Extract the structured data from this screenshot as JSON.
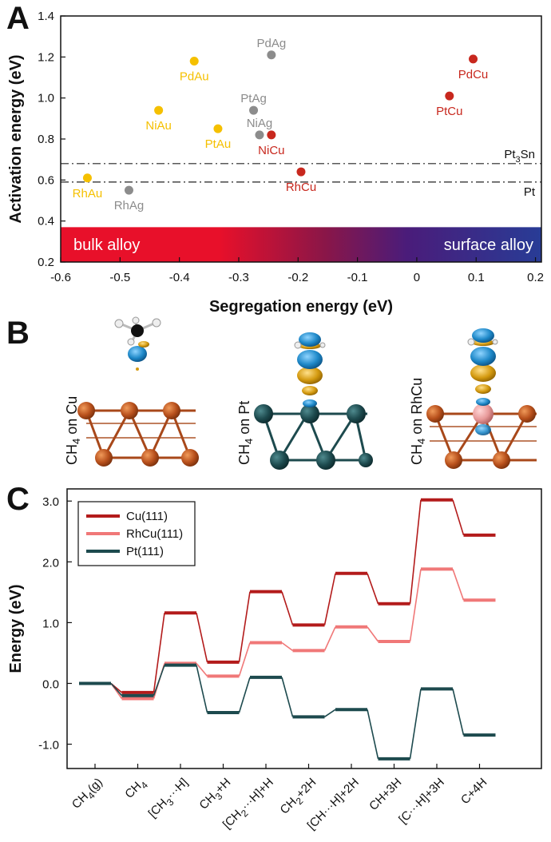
{
  "panels": {
    "a_letter": "A",
    "b_letter": "B",
    "c_letter": "C"
  },
  "colors": {
    "au": "#f5c000",
    "ag": "#8c8c8c",
    "cu": "#c8281e",
    "cu_line": "#b31b1b",
    "rhcu_line": "#f07878",
    "pt_line": "#1d4a4e",
    "band_left": "#e8102a",
    "band_right": "#283c96"
  },
  "chart_data": [
    {
      "type": "scatter",
      "xlabel": "Segregation energy (eV)",
      "ylabel": "Activation energy (eV)",
      "xlim": [
        -0.6,
        0.21
      ],
      "ylim": [
        0.2,
        1.4
      ],
      "xticks": [
        -0.6,
        -0.5,
        -0.4,
        -0.3,
        -0.2,
        -0.1,
        0,
        0.1,
        0.2
      ],
      "xtick_labels": [
        "-0.6",
        "-0.5",
        "-0.4",
        "-0.3",
        "-0.2",
        "-0.1",
        "0",
        "0.1",
        "0.2"
      ],
      "yticks": [
        0.2,
        0.4,
        0.6,
        0.8,
        1.0,
        1.2,
        1.4
      ],
      "ytick_labels": [
        "0.2",
        "0.4",
        "0.6",
        "0.8",
        "1.0",
        "1.2",
        "1.4"
      ],
      "points": [
        {
          "label": "RhAu",
          "x": -0.555,
          "y": 0.61,
          "group": "au",
          "label_pos": "below"
        },
        {
          "label": "NiAu",
          "x": -0.435,
          "y": 0.94,
          "group": "au",
          "label_pos": "below"
        },
        {
          "label": "PdAu",
          "x": -0.375,
          "y": 1.18,
          "group": "au",
          "label_pos": "below"
        },
        {
          "label": "PtAu",
          "x": -0.335,
          "y": 0.85,
          "group": "au",
          "label_pos": "below"
        },
        {
          "label": "RhAg",
          "x": -0.485,
          "y": 0.55,
          "group": "ag",
          "label_pos": "below"
        },
        {
          "label": "PtAg",
          "x": -0.275,
          "y": 0.94,
          "group": "ag",
          "label_pos": "above"
        },
        {
          "label": "NiAg",
          "x": -0.265,
          "y": 0.82,
          "group": "ag",
          "label_pos": "above"
        },
        {
          "label": "PdAg",
          "x": -0.245,
          "y": 1.21,
          "group": "ag",
          "label_pos": "above"
        },
        {
          "label": "NiCu",
          "x": -0.245,
          "y": 0.82,
          "group": "cu",
          "label_pos": "below"
        },
        {
          "label": "RhCu",
          "x": -0.195,
          "y": 0.64,
          "group": "cu",
          "label_pos": "below"
        },
        {
          "label": "PtCu",
          "x": 0.055,
          "y": 1.01,
          "group": "cu",
          "label_pos": "below"
        },
        {
          "label": "PdCu",
          "x": 0.095,
          "y": 1.19,
          "group": "cu",
          "label_pos": "below"
        }
      ],
      "reference_lines": [
        {
          "y": 0.68,
          "label": "Pt",
          "label_sub": "3",
          "label_tail": "Sn"
        },
        {
          "y": 0.59,
          "label": "Pt",
          "label_sub": "",
          "label_tail": ""
        }
      ],
      "band": {
        "y0": 0.2,
        "y1": 0.37,
        "left_label": "bulk alloy",
        "right_label": "surface alloy"
      }
    },
    {
      "type": "line",
      "xlabel": "",
      "ylabel": "Energy (eV)",
      "ylim": [
        -1.4,
        3.2
      ],
      "yticks": [
        -1.0,
        0.0,
        1.0,
        2.0,
        3.0
      ],
      "ytick_labels": [
        "-1.0",
        "0.0",
        "1.0",
        "2.0",
        "3.0"
      ],
      "categories": [
        {
          "pre": "CH",
          "sub": "4",
          "post": "(g)"
        },
        {
          "pre": "CH",
          "sub": "4",
          "post": ""
        },
        {
          "pre": "[CH",
          "sub": "3",
          "post": "···H]"
        },
        {
          "pre": "CH",
          "sub": "3",
          "post": "+H"
        },
        {
          "pre": "[CH",
          "sub": "2",
          "post": "···H]+H"
        },
        {
          "pre": "CH",
          "sub": "2",
          "post": "+2H"
        },
        {
          "pre": "[CH···H]+2H",
          "sub": "",
          "post": ""
        },
        {
          "pre": "CH+3H",
          "sub": "",
          "post": ""
        },
        {
          "pre": "[C···H]+3H",
          "sub": "",
          "post": ""
        },
        {
          "pre": "C+4H",
          "sub": "",
          "post": ""
        }
      ],
      "series": [
        {
          "name": "Cu(111)",
          "color_key": "cu_line",
          "values": [
            0.0,
            -0.15,
            1.16,
            0.35,
            1.51,
            0.96,
            1.81,
            1.31,
            3.02,
            2.44
          ]
        },
        {
          "name": "RhCu(111)",
          "color_key": "rhcu_line",
          "values": [
            0.0,
            -0.25,
            0.33,
            0.12,
            0.67,
            0.54,
            0.93,
            0.69,
            1.88,
            1.37
          ]
        },
        {
          "name": "Pt(111)",
          "color_key": "pt_line",
          "values": [
            0.0,
            -0.2,
            0.3,
            -0.48,
            0.1,
            -0.55,
            -0.43,
            -1.24,
            -0.09,
            -0.85
          ]
        }
      ],
      "legend": "top-left"
    }
  ],
  "panel_b": {
    "captions": [
      {
        "pre": "CH",
        "sub": "4",
        "post": " on Cu"
      },
      {
        "pre": "CH",
        "sub": "4",
        "post": " on Pt"
      },
      {
        "pre": "CH",
        "sub": "4",
        "post": " on RhCu"
      }
    ]
  }
}
